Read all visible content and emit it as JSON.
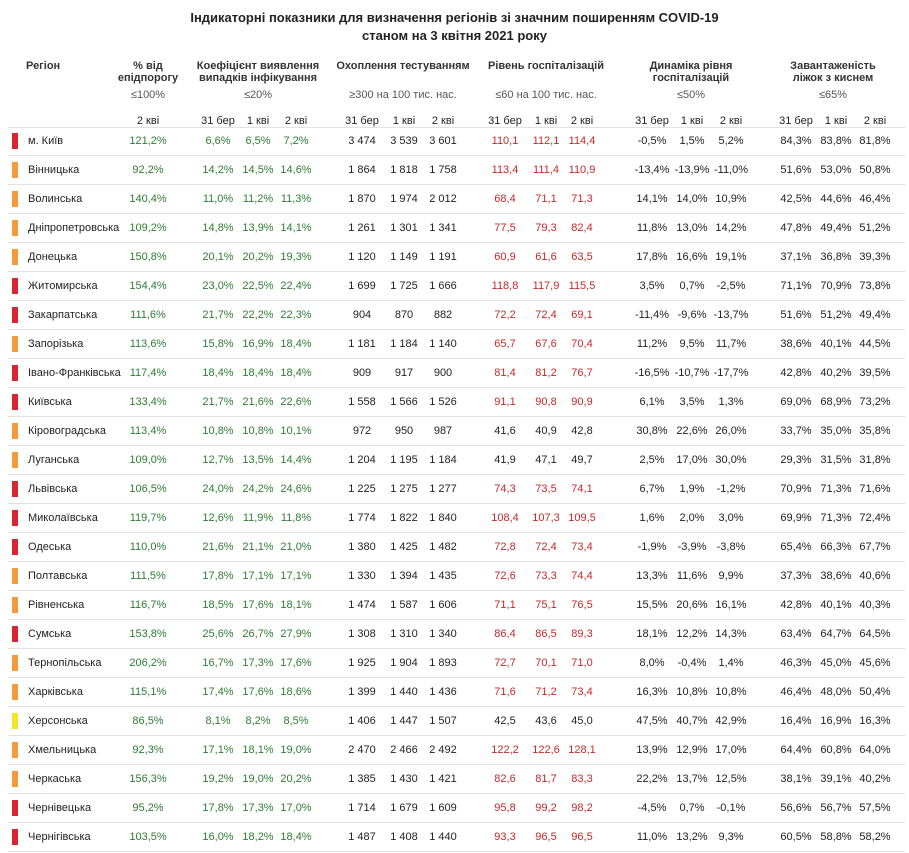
{
  "title": [
    "Індикаторні показники для визначення регіонів зі значним поширенням COVID-19",
    "станом на 3 квітня 2021 року"
  ],
  "region_header": "Регіон",
  "columns": [
    {
      "name": [
        "% від",
        "епідпорогу"
      ],
      "threshold": "≤100%",
      "periods": [
        "2 кві"
      ],
      "color": "#2e7d32"
    },
    {
      "name": [
        "Коефіцієнт виявлення",
        "випадків інфікування"
      ],
      "threshold": "≤20%",
      "periods": [
        "31 бер",
        "1 кві",
        "2 кві"
      ],
      "color": "#2e7d32"
    },
    {
      "name": [
        "Охоплення тестуванням"
      ],
      "threshold": "≥300 на 100 тис. нас.",
      "periods": [
        "31 бер",
        "1 кві",
        "2 кві"
      ],
      "color": "#222222"
    },
    {
      "name": [
        "Рівень госпіталізацій"
      ],
      "threshold": "≤60 на 100 тис. нас.",
      "periods": [
        "31 бер",
        "1 кві",
        "2 кві"
      ],
      "color": "#c62828"
    },
    {
      "name": [
        "Динаміка рівня",
        "госпіталізацій"
      ],
      "threshold": "≤50%",
      "periods": [
        "31 бер",
        "1 кві",
        "2 кві"
      ],
      "color": "#222222"
    },
    {
      "name": [
        "Завантаженість",
        "ліжок з киснем"
      ],
      "threshold": "≤65%",
      "periods": [
        "31 бер",
        "1 кві",
        "2 кві"
      ],
      "color": "#222222"
    }
  ],
  "rows": [
    {
      "region": "м. Київ",
      "color": "#d9262e",
      "values": [
        "121,2%",
        "6,6%",
        "6,5%",
        "7,2%",
        "3 474",
        "3 539",
        "3 601",
        "110,1",
        "112,1",
        "114,4",
        "-0,5%",
        "1,5%",
        "5,2%",
        "84,3%",
        "83,8%",
        "81,8%"
      ]
    },
    {
      "region": "Вінницька",
      "color": "#f59a3a",
      "values": [
        "92,2%",
        "14,2%",
        "14,5%",
        "14,6%",
        "1 864",
        "1 818",
        "1 758",
        "113,4",
        "111,4",
        "110,9",
        "-13,4%",
        "-13,9%",
        "-11,0%",
        "51,6%",
        "53,0%",
        "50,8%"
      ]
    },
    {
      "region": "Волинська",
      "color": "#f59a3a",
      "values": [
        "140,4%",
        "11,0%",
        "11,2%",
        "11,3%",
        "1 870",
        "1 974",
        "2 012",
        "68,4",
        "71,1",
        "71,3",
        "14,1%",
        "14,0%",
        "10,9%",
        "42,5%",
        "44,6%",
        "46,4%"
      ]
    },
    {
      "region": "Дніпропетровська",
      "color": "#f59a3a",
      "values": [
        "109,2%",
        "14,8%",
        "13,9%",
        "14,1%",
        "1 261",
        "1 301",
        "1 341",
        "77,5",
        "79,3",
        "82,4",
        "11,8%",
        "13,0%",
        "14,2%",
        "47,8%",
        "49,4%",
        "51,2%"
      ]
    },
    {
      "region": "Донецька",
      "color": "#f59a3a",
      "values": [
        "150,8%",
        "20,1%",
        "20,2%",
        "19,3%",
        "1 120",
        "1 149",
        "1 191",
        "60,9",
        "61,6",
        "63,5",
        "17,8%",
        "16,6%",
        "19,1%",
        "37,1%",
        "36,8%",
        "39,3%"
      ]
    },
    {
      "region": "Житомирська",
      "color": "#d9262e",
      "values": [
        "154,4%",
        "23,0%",
        "22,5%",
        "22,4%",
        "1 699",
        "1 725",
        "1 666",
        "118,8",
        "117,9",
        "115,5",
        "3,5%",
        "0,7%",
        "-2,5%",
        "71,1%",
        "70,9%",
        "73,8%"
      ]
    },
    {
      "region": "Закарпатська",
      "color": "#d9262e",
      "values": [
        "111,6%",
        "21,7%",
        "22,2%",
        "22,3%",
        "904",
        "870",
        "882",
        "72,2",
        "72,4",
        "69,1",
        "-11,4%",
        "-9,6%",
        "-13,7%",
        "51,6%",
        "51,2%",
        "49,4%"
      ]
    },
    {
      "region": "Запорізька",
      "color": "#f59a3a",
      "values": [
        "113,6%",
        "15,8%",
        "16,9%",
        "18,4%",
        "1 181",
        "1 184",
        "1 140",
        "65,7",
        "67,6",
        "70,4",
        "11,2%",
        "9,5%",
        "11,7%",
        "38,6%",
        "40,1%",
        "44,5%"
      ]
    },
    {
      "region": "Івано-Франківська",
      "color": "#d9262e",
      "values": [
        "117,4%",
        "18,4%",
        "18,4%",
        "18,4%",
        "909",
        "917",
        "900",
        "81,4",
        "81,2",
        "76,7",
        "-16,5%",
        "-10,7%",
        "-17,7%",
        "42,8%",
        "40,2%",
        "39,5%"
      ]
    },
    {
      "region": "Київська",
      "color": "#d9262e",
      "values": [
        "133,4%",
        "21,7%",
        "21,6%",
        "22,6%",
        "1 558",
        "1 566",
        "1 526",
        "91,1",
        "90,8",
        "90,9",
        "6,1%",
        "3,5%",
        "1,3%",
        "69,0%",
        "68,9%",
        "73,2%"
      ]
    },
    {
      "region": "Кіровоградська",
      "color": "#f59a3a",
      "hosp_color": "#222222",
      "values": [
        "113,4%",
        "10,8%",
        "10,8%",
        "10,1%",
        "972",
        "950",
        "987",
        "41,6",
        "40,9",
        "42,8",
        "30,8%",
        "22,6%",
        "26,0%",
        "33,7%",
        "35,0%",
        "35,8%"
      ]
    },
    {
      "region": "Луганська",
      "color": "#f59a3a",
      "hosp_color": "#222222",
      "values": [
        "109,0%",
        "12,7%",
        "13,5%",
        "14,4%",
        "1 204",
        "1 195",
        "1 184",
        "41,9",
        "47,1",
        "49,7",
        "2,5%",
        "17,0%",
        "30,0%",
        "29,3%",
        "31,5%",
        "31,8%"
      ]
    },
    {
      "region": "Львівська",
      "color": "#d9262e",
      "values": [
        "106,5%",
        "24,0%",
        "24,2%",
        "24,6%",
        "1 225",
        "1 275",
        "1 277",
        "74,3",
        "73,5",
        "74,1",
        "6,7%",
        "1,9%",
        "-1,2%",
        "70,9%",
        "71,3%",
        "71,6%"
      ]
    },
    {
      "region": "Миколаївська",
      "color": "#d9262e",
      "values": [
        "119,7%",
        "12,6%",
        "11,9%",
        "11,8%",
        "1 774",
        "1 822",
        "1 840",
        "108,4",
        "107,3",
        "109,5",
        "1,6%",
        "2,0%",
        "3,0%",
        "69,9%",
        "71,3%",
        "72,4%"
      ]
    },
    {
      "region": "Одеська",
      "color": "#d9262e",
      "values": [
        "110,0%",
        "21,6%",
        "21,1%",
        "21,0%",
        "1 380",
        "1 425",
        "1 482",
        "72,8",
        "72,4",
        "73,4",
        "-1,9%",
        "-3,9%",
        "-3,8%",
        "65,4%",
        "66,3%",
        "67,7%"
      ]
    },
    {
      "region": "Полтавська",
      "color": "#f59a3a",
      "values": [
        "111,5%",
        "17,8%",
        "17,1%",
        "17,1%",
        "1 330",
        "1 394",
        "1 435",
        "72,6",
        "73,3",
        "74,4",
        "13,3%",
        "11,6%",
        "9,9%",
        "37,3%",
        "38,6%",
        "40,6%"
      ]
    },
    {
      "region": "Рівненська",
      "color": "#f59a3a",
      "values": [
        "116,7%",
        "18,5%",
        "17,6%",
        "18,1%",
        "1 474",
        "1 587",
        "1 606",
        "71,1",
        "75,1",
        "76,5",
        "15,5%",
        "20,6%",
        "16,1%",
        "42,8%",
        "40,1%",
        "40,3%"
      ]
    },
    {
      "region": "Сумська",
      "color": "#d9262e",
      "values": [
        "153,8%",
        "25,6%",
        "26,7%",
        "27,9%",
        "1 308",
        "1 310",
        "1 340",
        "86,4",
        "86,5",
        "89,3",
        "18,1%",
        "12,2%",
        "14,3%",
        "63,4%",
        "64,7%",
        "64,5%"
      ]
    },
    {
      "region": "Тернопільська",
      "color": "#f59a3a",
      "values": [
        "206,2%",
        "16,7%",
        "17,3%",
        "17,6%",
        "1 925",
        "1 904",
        "1 893",
        "72,7",
        "70,1",
        "71,0",
        "8,0%",
        "-0,4%",
        "1,4%",
        "46,3%",
        "45,0%",
        "45,6%"
      ]
    },
    {
      "region": "Харківська",
      "color": "#f59a3a",
      "values": [
        "115,1%",
        "17,4%",
        "17,6%",
        "18,6%",
        "1 399",
        "1 440",
        "1 436",
        "71,6",
        "71,2",
        "73,4",
        "16,3%",
        "10,8%",
        "10,8%",
        "46,4%",
        "48,0%",
        "50,4%"
      ]
    },
    {
      "region": "Херсонська",
      "color": "#f5e52a",
      "hosp_color": "#222222",
      "values": [
        "86,5%",
        "8,1%",
        "8,2%",
        "8,5%",
        "1 406",
        "1 447",
        "1 507",
        "42,5",
        "43,6",
        "45,0",
        "47,5%",
        "40,7%",
        "42,9%",
        "16,4%",
        "16,9%",
        "16,3%"
      ]
    },
    {
      "region": "Хмельницька",
      "color": "#f59a3a",
      "values": [
        "92,3%",
        "17,1%",
        "18,1%",
        "19,0%",
        "2 470",
        "2 466",
        "2 492",
        "122,2",
        "122,6",
        "128,1",
        "13,9%",
        "12,9%",
        "17,0%",
        "64,4%",
        "60,8%",
        "64,0%"
      ]
    },
    {
      "region": "Черкаська",
      "color": "#f59a3a",
      "values": [
        "156,3%",
        "19,2%",
        "19,0%",
        "20,2%",
        "1 385",
        "1 430",
        "1 421",
        "82,6",
        "81,7",
        "83,3",
        "22,2%",
        "13,7%",
        "12,5%",
        "38,1%",
        "39,1%",
        "40,2%"
      ]
    },
    {
      "region": "Чернівецька",
      "color": "#d9262e",
      "values": [
        "95,2%",
        "17,8%",
        "17,3%",
        "17,0%",
        "1 714",
        "1 679",
        "1 609",
        "95,8",
        "99,2",
        "98,2",
        "-4,5%",
        "0,7%",
        "-0,1%",
        "56,6%",
        "56,7%",
        "57,5%"
      ]
    },
    {
      "region": "Чернігівська",
      "color": "#d9262e",
      "values": [
        "103,5%",
        "16,0%",
        "18,2%",
        "18,4%",
        "1 487",
        "1 408",
        "1 440",
        "93,3",
        "96,5",
        "96,5",
        "11,0%",
        "13,2%",
        "9,3%",
        "60,5%",
        "58,8%",
        "58,2%"
      ]
    }
  ]
}
